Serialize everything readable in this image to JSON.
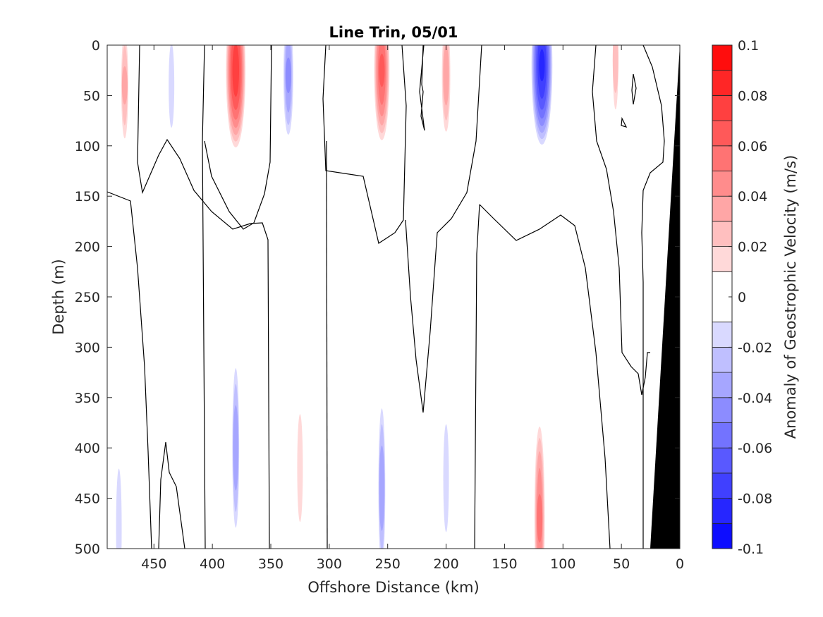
{
  "chart_data": {
    "type": "contour",
    "title": "Line Trin, 05/01",
    "xlabel": "Offshore Distance (km)",
    "ylabel": "Depth (m)",
    "colorbar_label": "Anomaly of Geostrophic Velocity (m/s)",
    "xlim": [
      490,
      0
    ],
    "ylim": [
      500,
      0
    ],
    "x_reversed": true,
    "y_reversed": true,
    "x_ticks": [
      450,
      400,
      350,
      300,
      250,
      200,
      150,
      100,
      50,
      0
    ],
    "x_tick_labels": [
      "450",
      "400",
      "350",
      "300",
      "250",
      "200",
      "150",
      "100",
      "50",
      "0"
    ],
    "y_ticks": [
      0,
      50,
      100,
      150,
      200,
      250,
      300,
      350,
      400,
      450,
      500
    ],
    "y_tick_labels": [
      "0",
      "50",
      "100",
      "150",
      "200",
      "250",
      "300",
      "350",
      "400",
      "450",
      "500"
    ],
    "colorbar_ticks": [
      0.1,
      0.08,
      0.06,
      0.04,
      0.02,
      0,
      -0.02,
      -0.04,
      -0.06,
      -0.08,
      -0.1
    ],
    "colorbar_tick_labels": [
      "0.1",
      "0.08",
      "0.06",
      "0.04",
      "0.02",
      "0",
      "-0.02",
      "-0.04",
      "-0.06",
      "-0.08",
      "-0.1"
    ],
    "color_levels": [
      -0.1,
      -0.09,
      -0.08,
      -0.07,
      -0.06,
      -0.05,
      -0.04,
      -0.03,
      -0.02,
      -0.01,
      0.01,
      0.02,
      0.03,
      0.04,
      0.05,
      0.06,
      0.07,
      0.08,
      0.09,
      0.1
    ],
    "colormap": "blue-white-red",
    "neg_color": "#0000ff",
    "pos_color": "#ff0000",
    "bathymetry_color": "#000000",
    "grid": false,
    "features": [
      {
        "sign": "pos",
        "x": 380,
        "y": 25,
        "peak": 0.075,
        "note": "surface jet"
      },
      {
        "sign": "neg",
        "x": 335,
        "y": 30,
        "peak": -0.04
      },
      {
        "sign": "pos",
        "x": 255,
        "y": 25,
        "peak": 0.06
      },
      {
        "sign": "pos",
        "x": 200,
        "y": 30,
        "peak": 0.035
      },
      {
        "sign": "neg",
        "x": 118,
        "y": 20,
        "peak": -0.08,
        "note": "strongest negative core"
      },
      {
        "sign": "pos",
        "x": 475,
        "y": 40,
        "peak": 0.03
      },
      {
        "sign": "neg",
        "x": 435,
        "y": 40,
        "peak": -0.018
      },
      {
        "sign": "pos",
        "x": 55,
        "y": 15,
        "peak": 0.025
      },
      {
        "sign": "neg",
        "x": 380,
        "y": 400,
        "peak": -0.035
      },
      {
        "sign": "pos",
        "x": 325,
        "y": 420,
        "peak": 0.015
      },
      {
        "sign": "neg",
        "x": 255,
        "y": 440,
        "peak": -0.035
      },
      {
        "sign": "neg",
        "x": 200,
        "y": 430,
        "peak": -0.015
      },
      {
        "sign": "pos",
        "x": 120,
        "y": 470,
        "peak": 0.05,
        "note": "deep positive core"
      },
      {
        "sign": "neg",
        "x": 480,
        "y": 480,
        "peak": -0.018
      }
    ]
  }
}
